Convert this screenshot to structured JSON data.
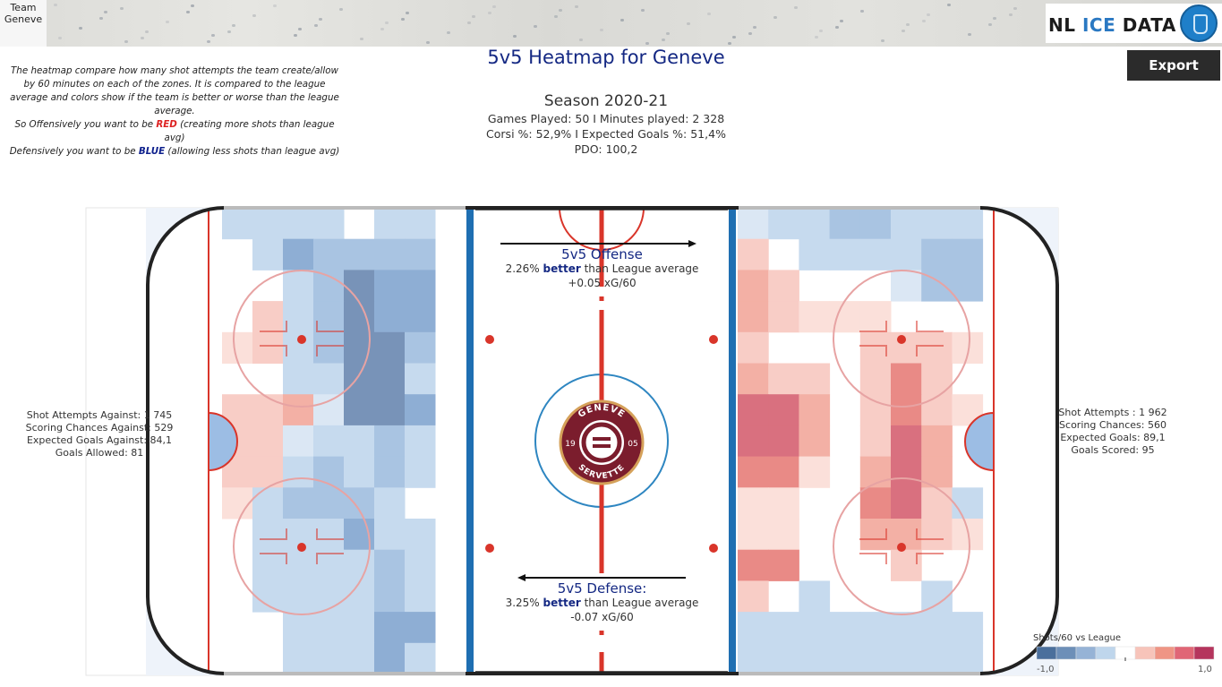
{
  "header": {
    "team_line1": "Team",
    "team_line2": "Geneve",
    "brand_nl": "NL",
    "brand_ice": "ICE",
    "brand_data": "DATA",
    "export_label": "Export"
  },
  "description": {
    "line1": "The heatmap compare how many shot attempts the team create/allow by 60 minutes on each of the zones. It is compared to the league average and colors show if the team is better or worse than the league average.",
    "line2_pre": "So Offensively you want to be ",
    "line2_red": "RED",
    "line2_post": "  (creating more shots than  league avg)",
    "line3_pre": "Defensively you want to be ",
    "line3_blue": "BLUE",
    "line3_post": "  (allowing less shots than  league avg)"
  },
  "title": "5v5 Heatmap for Geneve",
  "summary": {
    "season": "Season 2020-21",
    "games_line": "Games Played: 50 I Minutes played: 2 328",
    "corsi_line": "Corsi %: 52,9% I Expected Goals %: 51,4%",
    "pdo_line": "PDO: 100,2"
  },
  "defense_stats": {
    "line1": "Shot Attempts Against: 1 745",
    "line2": "Scoring Chances Against: 529",
    "line3": "Expected Goals Against: 84,1",
    "line4": "Goals Allowed: 81"
  },
  "offense_stats": {
    "line1": "Shot Attempts : 1 962",
    "line2": "Scoring Chances: 560",
    "line3": "Expected Goals: 89,1",
    "line4": "Goals Scored: 95"
  },
  "offense_box": {
    "title": "5v5 Offense",
    "pct": "2.26%",
    "word": "better",
    "rest": " than League average",
    "xg": "+0.05 xG/60"
  },
  "defense_box": {
    "title": "5v5 Defense:",
    "pct": "3.25%",
    "word": "better",
    "rest": " than League average",
    "xg": "-0.07 xG/60"
  },
  "logo": {
    "top_text": "GENEVE",
    "bottom_text": "SERVETTE",
    "left_num": "19",
    "right_num": "05"
  },
  "legend": {
    "title": "Shots/60 vs League",
    "low": "-1,0",
    "high": "1,0",
    "colors": [
      "#4a6f9c",
      "#6d8fb8",
      "#96b3d6",
      "#bfd6ec",
      "#ffffff",
      "#f7c4ba",
      "#ef9585",
      "#e06676",
      "#b5355d"
    ]
  },
  "colors": {
    "title_blue": "#142883",
    "rink_red": "#d9352a",
    "rink_blue": "#1f6fb2",
    "logo_maroon": "#7b1d2d"
  },
  "heatmap": {
    "defense": [
      [
        2,
        2,
        2,
        2,
        0,
        2,
        2
      ],
      [
        0,
        2,
        4,
        3,
        3,
        3,
        3
      ],
      [
        0,
        0,
        2,
        3,
        5,
        4,
        4
      ],
      [
        0,
        -2,
        2,
        3,
        5,
        4,
        4
      ],
      [
        -1,
        -2,
        2,
        3,
        5,
        5,
        3
      ],
      [
        0,
        0,
        2,
        2,
        5,
        5,
        2
      ],
      [
        -2,
        -2,
        -3,
        1,
        5,
        5,
        4
      ],
      [
        -2,
        -2,
        1,
        2,
        2,
        3,
        2
      ],
      [
        -2,
        -2,
        2,
        3,
        2,
        3,
        2
      ],
      [
        -1,
        2,
        3,
        3,
        3,
        2,
        0
      ],
      [
        0,
        2,
        2,
        2,
        4,
        2,
        2
      ],
      [
        0,
        2,
        2,
        2,
        2,
        3,
        2
      ],
      [
        0,
        2,
        2,
        2,
        2,
        3,
        2
      ],
      [
        0,
        0,
        2,
        2,
        2,
        4,
        4
      ],
      [
        0,
        0,
        2,
        2,
        2,
        4,
        2
      ]
    ],
    "offense": [
      [
        1,
        2,
        2,
        3,
        3,
        2,
        2,
        2
      ],
      [
        -2,
        0,
        2,
        2,
        2,
        2,
        3,
        3
      ],
      [
        -3,
        -2,
        0,
        0,
        0,
        1,
        3,
        3
      ],
      [
        -3,
        -2,
        -1,
        -1,
        -1,
        0,
        0,
        0
      ],
      [
        -2,
        0,
        0,
        0,
        -2,
        -2,
        -2,
        -1
      ],
      [
        -3,
        -2,
        -2,
        0,
        -2,
        -4,
        -2,
        0
      ],
      [
        -5,
        -5,
        -3,
        0,
        -2,
        -4,
        -2,
        -1
      ],
      [
        -5,
        -5,
        -3,
        0,
        -2,
        -5,
        -3,
        0
      ],
      [
        -4,
        -4,
        -1,
        0,
        -3,
        -5,
        -3,
        0
      ],
      [
        -1,
        -1,
        0,
        0,
        -4,
        -5,
        -2,
        2
      ],
      [
        -1,
        -1,
        0,
        0,
        -3,
        -3,
        -2,
        -1
      ],
      [
        -4,
        -4,
        0,
        0,
        0,
        -2,
        0,
        0
      ],
      [
        -2,
        0,
        2,
        0,
        0,
        0,
        2,
        0
      ],
      [
        2,
        2,
        2,
        2,
        2,
        2,
        2,
        2
      ],
      [
        2,
        2,
        2,
        2,
        2,
        2,
        2,
        2
      ]
    ]
  }
}
